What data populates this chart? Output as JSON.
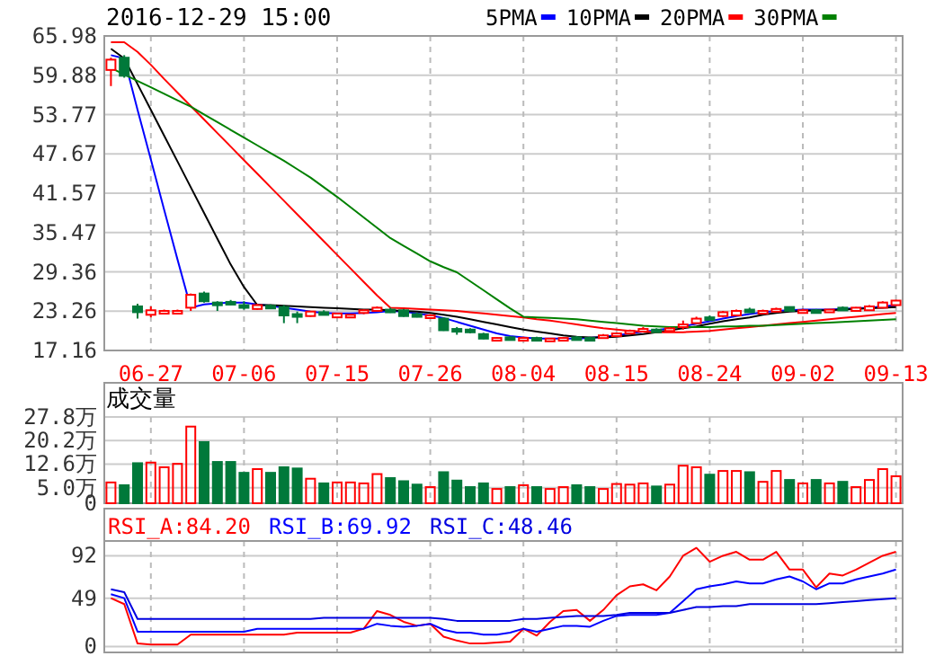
{
  "chart_data": [
    {
      "type": "candlestick",
      "title": "2016-12-29 15:00",
      "categories": [
        null,
        null,
        null,
        "06-27",
        null,
        null,
        null,
        null,
        null,
        null,
        "07-06",
        null,
        null,
        null,
        null,
        null,
        null,
        "07-15",
        null,
        null,
        null,
        null,
        null,
        null,
        "07-26",
        null,
        null,
        null,
        null,
        null,
        null,
        "08-04",
        null,
        null,
        null,
        null,
        null,
        null,
        "08-15",
        null,
        null,
        null,
        null,
        null,
        null,
        "08-24",
        null,
        null,
        null,
        null,
        null,
        null,
        "09-02",
        null,
        null,
        null,
        null,
        null,
        null,
        "09-13"
      ],
      "ohlc": [
        [
          60.7,
          62.6,
          58.2,
          62.3
        ],
        [
          62.6,
          63.0,
          59.5,
          59.8
        ],
        [
          24.0,
          24.4,
          22.1,
          23.1
        ],
        [
          22.7,
          24.0,
          22.3,
          23.4
        ],
        [
          23.2,
          23.5,
          23.1,
          23.3
        ],
        [
          23.2,
          23.5,
          23.1,
          23.3
        ],
        [
          23.8,
          26.0,
          23.3,
          25.8
        ],
        [
          26.0,
          26.3,
          24.6,
          24.8
        ],
        [
          24.6,
          24.8,
          23.3,
          24.4
        ],
        [
          24.7,
          25.0,
          24.2,
          24.5
        ],
        [
          24.2,
          24.8,
          23.5,
          24.0
        ],
        [
          23.6,
          24.4,
          23.5,
          24.2
        ],
        [
          24.1,
          24.3,
          23.6,
          23.8
        ],
        [
          23.9,
          24.2,
          21.4,
          22.6
        ],
        [
          22.8,
          23.2,
          21.4,
          22.6
        ],
        [
          22.5,
          23.3,
          22.4,
          23.2
        ],
        [
          23.1,
          23.4,
          22.8,
          23.0
        ],
        [
          22.3,
          23.0,
          22.2,
          22.9
        ],
        [
          22.5,
          22.8,
          22.4,
          22.7
        ],
        [
          23.0,
          23.5,
          22.8,
          23.4
        ],
        [
          23.3,
          24.0,
          23.2,
          23.8
        ],
        [
          23.5,
          23.8,
          23.0,
          23.2
        ],
        [
          23.4,
          23.6,
          22.4,
          22.5
        ],
        [
          22.8,
          23.0,
          22.3,
          22.4
        ],
        [
          22.4,
          22.8,
          22.2,
          22.6
        ],
        [
          22.1,
          22.3,
          20.2,
          20.3
        ],
        [
          20.5,
          20.8,
          19.6,
          20.3
        ],
        [
          20.4,
          20.6,
          19.8,
          20.2
        ],
        [
          19.7,
          19.9,
          18.9,
          19.0
        ],
        [
          18.9,
          19.2,
          18.8,
          19.1
        ],
        [
          19.2,
          19.4,
          18.8,
          19.0
        ],
        [
          18.9,
          19.3,
          18.8,
          19.1
        ],
        [
          19.1,
          19.3,
          18.8,
          19.0
        ],
        [
          18.8,
          19.1,
          18.6,
          19.0
        ],
        [
          18.9,
          19.2,
          18.8,
          19.1
        ],
        [
          19.2,
          19.4,
          18.9,
          19.0
        ],
        [
          19.1,
          19.3,
          18.9,
          19.0
        ],
        [
          19.2,
          19.7,
          19.1,
          19.5
        ],
        [
          19.6,
          19.9,
          19.4,
          19.8
        ],
        [
          19.9,
          20.4,
          19.8,
          20.2
        ],
        [
          20.3,
          20.8,
          20.1,
          20.5
        ],
        [
          20.4,
          20.6,
          20.0,
          20.2
        ],
        [
          20.2,
          20.8,
          20.1,
          20.6
        ],
        [
          20.9,
          21.8,
          20.4,
          21.2
        ],
        [
          21.4,
          22.4,
          21.3,
          22.1
        ],
        [
          22.3,
          22.6,
          21.9,
          22.2
        ],
        [
          22.5,
          23.3,
          22.3,
          23.1
        ],
        [
          22.6,
          23.5,
          22.5,
          23.3
        ],
        [
          23.5,
          23.8,
          23.2,
          23.4
        ],
        [
          23.2,
          23.5,
          23.0,
          23.3
        ],
        [
          23.3,
          23.8,
          23.2,
          23.6
        ],
        [
          23.9,
          24.0,
          23.2,
          23.3
        ],
        [
          23.3,
          23.6,
          23.2,
          23.4
        ],
        [
          23.4,
          23.6,
          23.1,
          23.3
        ],
        [
          23.3,
          23.6,
          23.2,
          23.5
        ],
        [
          23.8,
          24.0,
          23.5,
          23.7
        ],
        [
          23.3,
          23.9,
          23.2,
          23.8
        ],
        [
          23.4,
          24.2,
          23.3,
          24.0
        ],
        [
          23.8,
          24.8,
          23.7,
          24.6
        ],
        [
          24.2,
          25.0,
          24.1,
          24.9
        ]
      ],
      "series": [
        {
          "name": "5PMA",
          "type": "line",
          "color": "#0000ff",
          "values": [
            63.0,
            62.5,
            54.5,
            46.8,
            39.0,
            31.3,
            23.8,
            24.3,
            24.5,
            24.6,
            24.6,
            24.3,
            24.1,
            23.8,
            23.5,
            23.2,
            23.0,
            22.9,
            22.9,
            23.0,
            23.1,
            23.3,
            23.2,
            22.9,
            22.6,
            22.2,
            21.6,
            21.0,
            20.4,
            19.8,
            19.4,
            19.2,
            19.0,
            19.0,
            19.0,
            19.0,
            19.1,
            19.3,
            19.5,
            19.8,
            20.1,
            20.3,
            20.6,
            20.9,
            21.3,
            21.7,
            22.1,
            22.5,
            22.8,
            23.1,
            23.3,
            23.4,
            23.5,
            23.5,
            23.5,
            23.6,
            23.7,
            23.8,
            24.0,
            24.2
          ]
        },
        {
          "name": "10PMA",
          "type": "line",
          "color": "#000000",
          "values": [
            64.0,
            62.5,
            58.5,
            54.5,
            50.5,
            46.5,
            42.5,
            38.5,
            34.5,
            30.5,
            27.0,
            24.2,
            24.2,
            24.1,
            24.0,
            23.9,
            23.8,
            23.7,
            23.6,
            23.5,
            23.5,
            23.4,
            23.3,
            23.2,
            23.0,
            22.7,
            22.4,
            22.0,
            21.6,
            21.2,
            20.8,
            20.4,
            20.1,
            19.8,
            19.5,
            19.3,
            19.2,
            19.2,
            19.3,
            19.5,
            19.7,
            20.0,
            20.3,
            20.6,
            20.9,
            21.3,
            21.7,
            22.0,
            22.3,
            22.7,
            23.0,
            23.2,
            23.3,
            23.4,
            23.4,
            23.5,
            23.6,
            23.7,
            23.8,
            23.9
          ]
        },
        {
          "name": "20PMA",
          "type": "line",
          "color": "#ff0000",
          "values": [
            65.0,
            65.0,
            63.5,
            61.5,
            59.3,
            57.2,
            55.1,
            53.0,
            50.9,
            48.8,
            46.7,
            44.6,
            42.5,
            40.4,
            38.3,
            36.2,
            34.1,
            32.0,
            29.9,
            27.8,
            25.7,
            23.8,
            23.7,
            23.6,
            23.5,
            23.4,
            23.3,
            23.1,
            22.9,
            22.7,
            22.5,
            22.3,
            22.0,
            21.8,
            21.5,
            21.2,
            20.9,
            20.6,
            20.4,
            20.2,
            20.1,
            20.0,
            20.0,
            20.0,
            20.1,
            20.2,
            20.4,
            20.6,
            20.8,
            21.0,
            21.2,
            21.4,
            21.6,
            21.8,
            22.0,
            22.2,
            22.4,
            22.6,
            22.8,
            23.0
          ]
        },
        {
          "name": "30PMA",
          "type": "line",
          "color": "#008000",
          "values": [
            61.0,
            60.0,
            59.0,
            58.0,
            57.0,
            56.0,
            55.0,
            53.8,
            52.6,
            51.4,
            50.2,
            49.0,
            47.8,
            46.6,
            45.3,
            44.0,
            42.5,
            41.0,
            39.4,
            37.8,
            36.2,
            34.6,
            33.4,
            32.2,
            31.0,
            30.1,
            29.3,
            27.9,
            26.5,
            25.1,
            23.7,
            22.4,
            22.3,
            22.2,
            22.1,
            22.0,
            21.8,
            21.6,
            21.4,
            21.2,
            21.0,
            20.9,
            20.8,
            20.8,
            20.8,
            20.8,
            20.9,
            20.9,
            21.0,
            21.0,
            21.1,
            21.2,
            21.3,
            21.4,
            21.5,
            21.6,
            21.7,
            21.8,
            21.9,
            22.0
          ]
        }
      ],
      "ylim": [
        17.16,
        65.98
      ],
      "yticks": [
        17.16,
        23.26,
        29.36,
        35.47,
        41.57,
        47.67,
        53.77,
        59.88,
        65.98
      ],
      "grid": true,
      "legend": "top"
    },
    {
      "type": "bar",
      "title": "成交量",
      "categories": [
        null,
        null,
        null,
        null,
        null,
        null,
        null,
        null,
        null,
        null,
        null,
        null,
        null,
        null,
        null,
        null,
        null,
        null,
        null,
        null,
        null,
        null,
        null,
        null,
        null,
        null,
        null,
        null,
        null,
        null,
        null,
        null,
        null,
        null,
        null,
        null,
        null,
        null,
        null,
        null,
        null,
        null,
        null,
        null,
        null,
        null,
        null,
        null,
        null,
        null,
        null,
        null,
        null,
        null,
        null,
        null,
        null,
        null,
        null,
        null
      ],
      "values": [
        6.7,
        5.8,
        12.9,
        13.1,
        11.6,
        12.7,
        24.7,
        19.7,
        13.3,
        13.3,
        9.8,
        11.0,
        9.8,
        11.6,
        11.2,
        7.9,
        6.4,
        6.7,
        6.7,
        6.4,
        9.4,
        8.1,
        7.1,
        6.0,
        5.2,
        10.0,
        7.3,
        5.2,
        6.4,
        4.6,
        5.2,
        5.8,
        5.2,
        4.6,
        5.2,
        5.8,
        5.2,
        4.6,
        6.2,
        6.0,
        6.4,
        5.4,
        6.0,
        12.1,
        11.6,
        9.2,
        10.4,
        10.4,
        10.0,
        6.9,
        10.4,
        7.5,
        6.4,
        7.5,
        6.4,
        6.9,
        5.2,
        7.5,
        11.0,
        8.7
      ],
      "colors": [
        "#ff0000",
        "#00793a",
        "#00793a",
        "#ff0000",
        "#ff0000",
        "#ff0000",
        "#ff0000",
        "#00793a",
        "#00793a",
        "#00793a",
        "#00793a",
        "#ff0000",
        "#00793a",
        "#00793a",
        "#00793a",
        "#ff0000",
        "#00793a",
        "#ff0000",
        "#ff0000",
        "#ff0000",
        "#ff0000",
        "#00793a",
        "#00793a",
        "#00793a",
        "#ff0000",
        "#00793a",
        "#00793a",
        "#00793a",
        "#00793a",
        "#ff0000",
        "#00793a",
        "#ff0000",
        "#00793a",
        "#ff0000",
        "#ff0000",
        "#00793a",
        "#00793a",
        "#ff0000",
        "#ff0000",
        "#ff0000",
        "#ff0000",
        "#00793a",
        "#ff0000",
        "#ff0000",
        "#ff0000",
        "#00793a",
        "#ff0000",
        "#ff0000",
        "#00793a",
        "#ff0000",
        "#ff0000",
        "#00793a",
        "#ff0000",
        "#00793a",
        "#ff0000",
        "#00793a",
        "#ff0000",
        "#ff0000",
        "#ff0000",
        "#ff0000"
      ],
      "ylim": [
        0,
        27.8
      ],
      "yticks": [
        0,
        {
          "value": 5.0,
          "label": "5.0万"
        },
        {
          "value": 12.6,
          "label": "12.6万"
        },
        {
          "value": 20.2,
          "label": "20.2万"
        },
        {
          "value": 27.8,
          "label": "27.8万"
        }
      ],
      "grid": true,
      "tick_labels": "y"
    },
    {
      "type": "line",
      "categories": [
        null,
        null,
        null,
        null,
        null,
        null,
        null,
        null,
        null,
        null,
        null,
        null,
        null,
        null,
        null,
        null,
        null,
        null,
        null,
        null,
        null,
        null,
        null,
        null,
        null,
        null,
        null,
        null,
        null,
        null,
        null,
        null,
        null,
        null,
        null,
        null,
        null,
        null,
        null,
        null,
        null,
        null,
        null,
        null,
        null,
        null,
        null,
        null,
        null,
        null,
        null,
        null,
        null,
        null,
        null,
        null,
        null,
        null,
        null,
        null
      ],
      "series": [
        {
          "name": "RSI_A:84.20",
          "color": "#ff0000",
          "values": [
            49,
            43,
            3,
            2,
            2,
            2,
            12,
            12,
            12,
            12,
            12,
            12,
            12,
            12,
            14,
            14,
            14,
            14,
            14,
            18,
            36,
            32,
            25,
            21,
            23,
            10,
            6,
            3,
            3,
            4,
            5,
            18,
            11,
            25,
            36,
            37,
            26,
            37,
            52,
            61,
            63,
            57,
            71,
            92,
            100,
            86,
            92,
            96,
            88,
            88,
            96,
            78,
            78,
            60,
            74,
            72,
            78,
            85,
            92,
            96
          ]
        },
        {
          "name": "RSI_B:69.92",
          "color": "#0000ff",
          "values": [
            53,
            49,
            15,
            15,
            15,
            15,
            15,
            15,
            15,
            15,
            15,
            18,
            18,
            18,
            18,
            18,
            18,
            18,
            18,
            18,
            23,
            21,
            20,
            21,
            23,
            17,
            14,
            14,
            12,
            12,
            14,
            18,
            15,
            18,
            21,
            21,
            20,
            26,
            31,
            32,
            32,
            32,
            34,
            46,
            58,
            61,
            63,
            66,
            64,
            64,
            68,
            71,
            66,
            58,
            64,
            64,
            68,
            71,
            74,
            78
          ]
        },
        {
          "name": "RSI_C:48.46",
          "color": "#0000e0",
          "values": [
            58,
            55,
            28,
            28,
            28,
            28,
            28,
            28,
            28,
            28,
            28,
            28,
            28,
            28,
            28,
            28,
            29,
            29,
            29,
            29,
            29,
            29,
            29,
            29,
            29,
            28,
            26,
            26,
            26,
            26,
            26,
            28,
            28,
            29,
            30,
            31,
            31,
            31,
            32,
            34,
            34,
            34,
            34,
            37,
            40,
            40,
            41,
            41,
            43,
            43,
            43,
            43,
            43,
            43,
            44,
            45,
            46,
            47,
            48,
            49
          ]
        }
      ],
      "ylim": [
        -6,
        107
      ],
      "yticks": [
        0,
        49,
        92
      ],
      "grid": true,
      "legend": "top",
      "tick_labels": "y"
    }
  ]
}
